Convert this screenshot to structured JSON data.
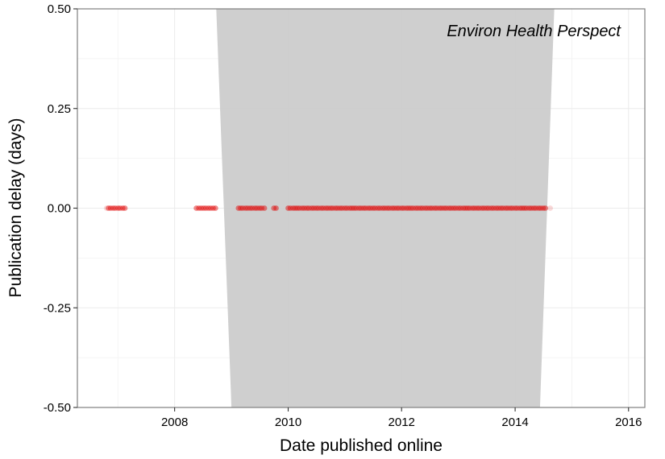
{
  "chart_data": {
    "type": "scatter",
    "annotation": "Environ Health Perspect",
    "xlabel": "Date published online",
    "ylabel": "Publication delay (days)",
    "xlim": [
      "2006-04-15",
      "2016-04-15"
    ],
    "ylim": [
      -0.5,
      0.5
    ],
    "x_ticks": [
      "2008",
      "2010",
      "2012",
      "2014",
      "2016"
    ],
    "y_ticks": [
      "0.50",
      "0.25",
      "0.00",
      "-0.25",
      "-0.50"
    ],
    "y_tick_values": [
      0.5,
      0.25,
      0.0,
      -0.25,
      -0.5
    ],
    "grid": true,
    "point_color": "#e00000",
    "band_color": "#cccccc",
    "confidence_band": {
      "upper": [
        [
          "2008-09-25",
          0.5
        ],
        [
          "2014-09-10",
          0.5
        ]
      ],
      "lower": [
        [
          "2009-01-01",
          -0.5
        ],
        [
          "2014-06-10",
          -0.5
        ]
      ]
    },
    "series": [
      {
        "x_start": "2006-10-20",
        "x_end": "2014-08-15",
        "dates": [
          "2006-11-01",
          "2006-11-15",
          "2006-12-01",
          "2006-12-15",
          "2007-01-01",
          "2007-01-15",
          "2007-02-01",
          "2007-02-15",
          "2008-05-20",
          "2008-06-05",
          "2008-06-20",
          "2008-07-05",
          "2008-07-20",
          "2008-08-05",
          "2008-08-20",
          "2008-09-05",
          "2008-09-20",
          "2009-02-15",
          "2009-03-01",
          "2009-03-15",
          "2009-04-01",
          "2009-04-15",
          "2009-05-01",
          "2009-05-15",
          "2009-06-01",
          "2009-06-15",
          "2009-07-01",
          "2009-07-15",
          "2009-08-01",
          "2009-10-01",
          "2009-10-15",
          "2010-01-01",
          "2010-01-15",
          "2010-02-01",
          "2010-02-15",
          "2010-03-01",
          "2010-03-15",
          "2010-04-01",
          "2010-04-15",
          "2010-05-01",
          "2010-05-15",
          "2010-06-01",
          "2010-06-15",
          "2010-07-01",
          "2010-07-15",
          "2010-08-01",
          "2010-08-15",
          "2010-09-01",
          "2010-09-15",
          "2010-10-01",
          "2010-10-15",
          "2010-11-01",
          "2010-11-15",
          "2010-12-01",
          "2010-12-15",
          "2011-01-01",
          "2011-01-15",
          "2011-02-01",
          "2011-02-15",
          "2011-03-01",
          "2011-03-15",
          "2011-04-01",
          "2011-04-15",
          "2011-05-01",
          "2011-05-15",
          "2011-06-01",
          "2011-06-15",
          "2011-07-01",
          "2011-07-15",
          "2011-08-01",
          "2011-08-15",
          "2011-09-01",
          "2011-09-15",
          "2011-10-01",
          "2011-10-15",
          "2011-11-01",
          "2011-11-15",
          "2011-12-01",
          "2011-12-15",
          "2012-01-01",
          "2012-01-15",
          "2012-02-01",
          "2012-02-15",
          "2012-03-01",
          "2012-03-15",
          "2012-04-01",
          "2012-04-15",
          "2012-05-01",
          "2012-05-15",
          "2012-06-01",
          "2012-06-15",
          "2012-07-01",
          "2012-07-15",
          "2012-08-01",
          "2012-08-15",
          "2012-09-01",
          "2012-09-15",
          "2012-10-01",
          "2012-10-15",
          "2012-11-01",
          "2012-11-15",
          "2012-12-01",
          "2012-12-15",
          "2013-01-01",
          "2013-01-15",
          "2013-02-01",
          "2013-02-15",
          "2013-03-01",
          "2013-03-15",
          "2013-04-01",
          "2013-04-15",
          "2013-05-01",
          "2013-05-15",
          "2013-06-01",
          "2013-06-15",
          "2013-07-01",
          "2013-07-15",
          "2013-08-01",
          "2013-08-15",
          "2013-09-01",
          "2013-09-15",
          "2013-10-01",
          "2013-10-15",
          "2013-11-01",
          "2013-11-15",
          "2013-12-01",
          "2013-12-15",
          "2014-01-01",
          "2014-01-15",
          "2014-02-01",
          "2014-02-15",
          "2014-03-01",
          "2014-03-15",
          "2014-04-01",
          "2014-04-15",
          "2014-05-01",
          "2014-05-15",
          "2014-06-01",
          "2014-06-15",
          "2014-07-01",
          "2014-07-15"
        ],
        "delay": 0.0
      }
    ]
  }
}
